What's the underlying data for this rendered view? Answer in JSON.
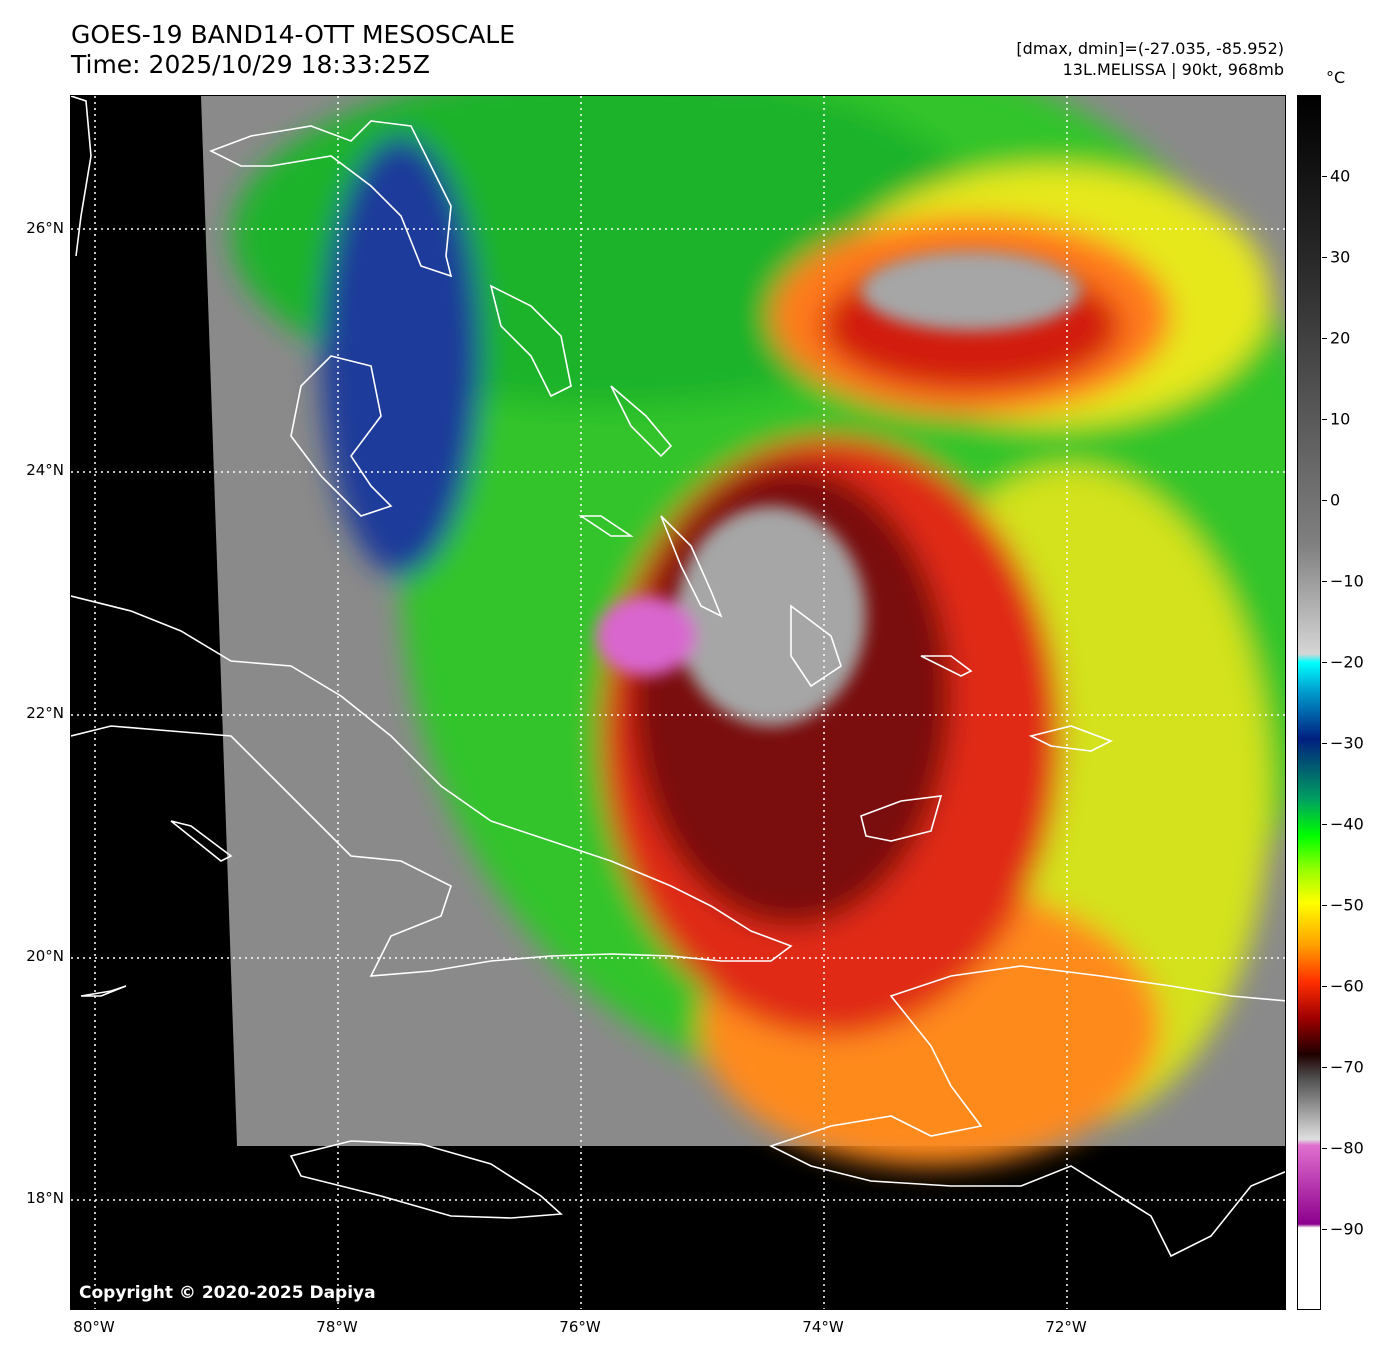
{
  "header": {
    "title": "GOES-19 BAND14-OTT MESOSCALE",
    "time": "Time: 2025/10/29 18:33:25Z",
    "range": "[dmax, dmin]=(-27.035, -85.952)",
    "storm": "13L.MELISSA | 90kt, 968mb"
  },
  "map": {
    "copyright": "Copyright © 2020-2025 Dapiya",
    "lat_labels": [
      "26°N",
      "24°N",
      "22°N",
      "20°N",
      "18°N"
    ],
    "lon_labels": [
      "80°W",
      "78°W",
      "76°W",
      "74°W",
      "72°W"
    ],
    "lat_range": [
      17.1,
      27.1
    ],
    "lon_range": [
      80.2,
      70.2
    ],
    "grid_style": "dotted white"
  },
  "colorbar": {
    "unit": "°C",
    "ticks": [
      "40",
      "30",
      "20",
      "10",
      "0",
      "−10",
      "−20",
      "−30",
      "−40",
      "−50",
      "−60",
      "−70",
      "−80",
      "−90"
    ],
    "range": [
      -100,
      50
    ]
  }
}
